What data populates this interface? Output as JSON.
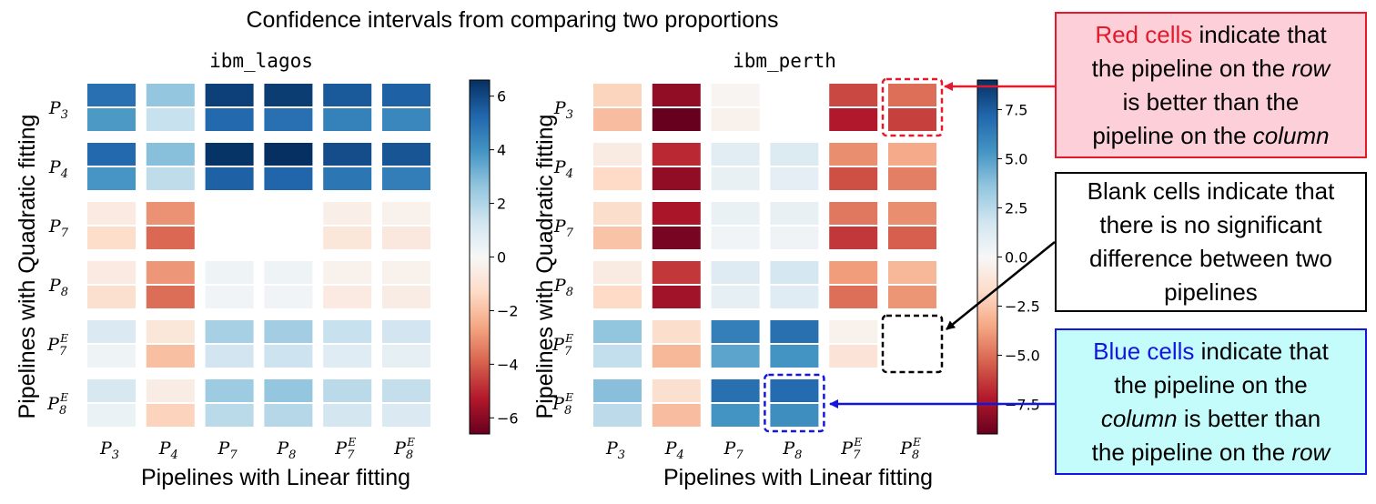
{
  "title": "Confidence intervals from comparing two proportions",
  "chart_data": [
    {
      "type": "heatmap",
      "subtitle": "ibm_lagos",
      "xlabel": "Pipelines with Linear fitting",
      "ylabel": "Pipelines with Quadratic fitting",
      "labels": [
        "P3",
        "P4",
        "P7",
        "P8",
        "P7E",
        "P8E"
      ],
      "colorbar": {
        "min": -6.6,
        "max": 6.6,
        "ticks": [
          -6,
          -4,
          -2,
          0,
          2,
          4,
          6
        ],
        "tick_labels": [
          "−6",
          "−4",
          "−2",
          "0",
          "2",
          "4",
          "6"
        ]
      },
      "cells": [
        [
          [
            5.0,
            3.8
          ],
          [
            2.6,
            1.5
          ],
          [
            6.2,
            5.2
          ],
          [
            6.3,
            5.0
          ],
          [
            5.6,
            4.5
          ],
          [
            5.4,
            4.3
          ]
        ],
        [
          [
            5.2,
            3.9
          ],
          [
            2.8,
            1.7
          ],
          [
            6.5,
            5.4
          ],
          [
            6.6,
            5.3
          ],
          [
            5.9,
            4.8
          ],
          [
            5.7,
            4.6
          ]
        ],
        [
          [
            -0.6,
            -1.2
          ],
          [
            -3.0,
            -3.8
          ],
          [
            null,
            null
          ],
          [
            null,
            null
          ],
          [
            -0.4,
            -0.8
          ],
          [
            -0.3,
            -0.7
          ]
        ],
        [
          [
            -0.6,
            -1.1
          ],
          [
            -2.9,
            -3.7
          ],
          [
            0.3,
            0.2
          ],
          [
            0.3,
            0.2
          ],
          [
            -0.3,
            -0.6
          ],
          [
            -0.3,
            -0.5
          ]
        ],
        [
          [
            1.0,
            0.3
          ],
          [
            -0.8,
            -2.0
          ],
          [
            2.2,
            1.3
          ],
          [
            2.3,
            1.4
          ],
          [
            1.5,
            0.8
          ],
          [
            1.3,
            0.6
          ]
        ],
        [
          [
            1.1,
            0.4
          ],
          [
            -0.5,
            -1.5
          ],
          [
            2.4,
            1.8
          ],
          [
            2.6,
            1.9
          ],
          [
            1.8,
            1.2
          ],
          [
            1.6,
            1.0
          ]
        ]
      ]
    },
    {
      "type": "heatmap",
      "subtitle": "ibm_perth",
      "xlabel": "Pipelines with Linear fitting",
      "ylabel": "Pipelines with Quadratic fitting",
      "labels": [
        "P3",
        "P4",
        "P7",
        "P8",
        "P7E",
        "P8E"
      ],
      "colorbar": {
        "min": -9.0,
        "max": 9.0,
        "ticks": [
          7.5,
          5.0,
          2.5,
          0.0,
          -2.5,
          -5.0,
          -7.5
        ],
        "tick_labels": [
          "7.5",
          "5.0",
          "2.5",
          "0.0",
          "−2.5",
          "−5.0",
          "−7.5"
        ]
      },
      "cells": [
        [
          [
            -2.0,
            -2.8
          ],
          [
            -8.0,
            -9.0
          ],
          [
            -0.2,
            -0.4
          ],
          [
            null,
            null
          ],
          [
            -6.0,
            -7.2
          ],
          [
            -5.0,
            -6.2
          ]
        ],
        [
          [
            -0.8,
            -1.8
          ],
          [
            -6.8,
            -8.0
          ],
          [
            1.0,
            0.7
          ],
          [
            1.3,
            0.9
          ],
          [
            -4.2,
            -5.8
          ],
          [
            -3.4,
            -4.6
          ]
        ],
        [
          [
            -1.6,
            -2.6
          ],
          [
            -7.4,
            -8.6
          ],
          [
            0.6,
            0.3
          ],
          [
            0.7,
            0.4
          ],
          [
            -4.8,
            -6.4
          ],
          [
            -4.2,
            -5.4
          ]
        ],
        [
          [
            -0.8,
            -1.8
          ],
          [
            -6.4,
            -7.6
          ],
          [
            1.2,
            0.8
          ],
          [
            1.6,
            1.1
          ],
          [
            -3.8,
            -5.0
          ],
          [
            -3.0,
            -4.0
          ]
        ],
        [
          [
            3.6,
            2.2
          ],
          [
            -1.6,
            -3.0
          ],
          [
            6.2,
            4.8
          ],
          [
            6.8,
            5.4
          ],
          [
            -0.4,
            -1.2
          ],
          [
            null,
            null
          ]
        ],
        [
          [
            3.8,
            2.4
          ],
          [
            -1.5,
            -2.8
          ],
          [
            6.8,
            5.4
          ],
          [
            7.0,
            5.6
          ],
          [
            null,
            null
          ],
          [
            null,
            null
          ]
        ]
      ],
      "highlights": [
        {
          "type": "red",
          "row": 0,
          "col": 5
        },
        {
          "type": "blank",
          "row": 4,
          "col": 5
        },
        {
          "type": "blue",
          "row": 5,
          "col": 3
        }
      ]
    }
  ],
  "notes": {
    "red": {
      "highlight": "Red cells",
      "line1_rest": " indicate that",
      "line2_pre": "the pipeline on the ",
      "line2_em": "row",
      "line3": "is better than the",
      "line4_pre": "pipeline on the ",
      "line4_em": "column"
    },
    "blank": {
      "lines": [
        "Blank cells indicate that",
        "there is no significant",
        "difference between two",
        "pipelines"
      ]
    },
    "blue": {
      "highlight": "Blue cells",
      "line1_rest": " indicate that",
      "line2": "the pipeline on the",
      "line3_em": "column",
      "line3_rest": " is better than",
      "line4_pre": "the pipeline on the ",
      "line4_em": "row"
    }
  },
  "colors": {
    "red_note_bg": "#fccfd9",
    "red_note_border": "#e31a2c",
    "blank_note_bg": "#ffffff",
    "blue_note_bg": "#c4fbfb",
    "blue_note_border": "#1515e0"
  }
}
